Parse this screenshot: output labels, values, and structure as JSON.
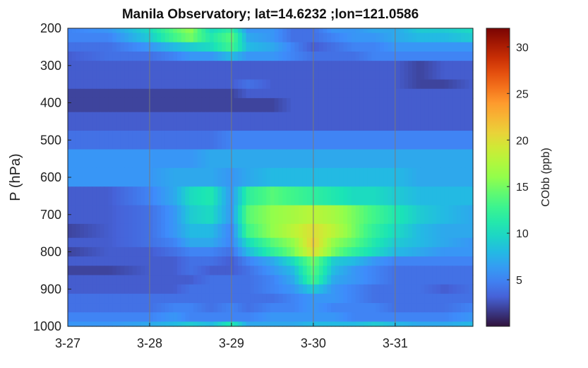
{
  "chart_data": {
    "type": "heatmap",
    "title": "Manila Observatory; lat=14.6232 ;lon=121.0586",
    "ylabel": "P (hPa)",
    "colorbar_label": "CObb (ppb)",
    "x_ticks": [
      "3-27",
      "3-28",
      "3-29",
      "3-30",
      "3-31"
    ],
    "x_tick_values": [
      0,
      1,
      2,
      3,
      4
    ],
    "x_range": [
      0,
      4.95
    ],
    "y_ticks": [
      "200",
      "300",
      "400",
      "500",
      "600",
      "700",
      "800",
      "900",
      "1000"
    ],
    "y_tick_values": [
      200,
      300,
      400,
      500,
      600,
      700,
      800,
      900,
      1000
    ],
    "y_range": [
      200,
      1000
    ],
    "y_reversed": true,
    "color_range": [
      0,
      32
    ],
    "colorbar_ticks": [
      "5",
      "10",
      "15",
      "20",
      "25",
      "30"
    ],
    "colorbar_tick_values": [
      5,
      10,
      15,
      20,
      25,
      30
    ],
    "colormap": "turbo",
    "vertical_gridlines_at": [
      1,
      2,
      3,
      4
    ],
    "pressure_levels": [
      200,
      225,
      250,
      275,
      300,
      325,
      350,
      375,
      400,
      450,
      500,
      550,
      600,
      650,
      700,
      750,
      775,
      800,
      825,
      850,
      875,
      900,
      925,
      950,
      975,
      1000
    ],
    "time_anchor_days": [
      0,
      0.5,
      1,
      1.3,
      1.5,
      1.75,
      2,
      2.2,
      2.5,
      2.75,
      3,
      3.25,
      3.5,
      3.75,
      4,
      4.3,
      4.6,
      4.95
    ],
    "values": [
      [
        5,
        6,
        10,
        14,
        16,
        10,
        12,
        6,
        6,
        4,
        4,
        6,
        6,
        7,
        7,
        9,
        9,
        10
      ],
      [
        5,
        5,
        9,
        13,
        15,
        11,
        14,
        7,
        6,
        4,
        4,
        5,
        6,
        6,
        7,
        8,
        8,
        9
      ],
      [
        4,
        4,
        6,
        8,
        9,
        10,
        13,
        8,
        7,
        5,
        3,
        4,
        5,
        5,
        6,
        6,
        6,
        6
      ],
      [
        3,
        4,
        4,
        5,
        6,
        6,
        8,
        6,
        6,
        5,
        4,
        4,
        4,
        5,
        5,
        5,
        5,
        5
      ],
      [
        3,
        3,
        3,
        3,
        3,
        3,
        3,
        3,
        3,
        3,
        3,
        3,
        3,
        3,
        3,
        2,
        3,
        3
      ],
      [
        3,
        3,
        3,
        3,
        3,
        3,
        3,
        3,
        3,
        3,
        3,
        3,
        3,
        3,
        3,
        2,
        3,
        3
      ],
      [
        3,
        3,
        3,
        3,
        3,
        3,
        3,
        4,
        3,
        3,
        3,
        3,
        3,
        3,
        3,
        2,
        2,
        3
      ],
      [
        2,
        2,
        2,
        2,
        2,
        2,
        2,
        3,
        3,
        3,
        3,
        3,
        3,
        3,
        3,
        3,
        3,
        3
      ],
      [
        2,
        2,
        2,
        2,
        2,
        2,
        2,
        2,
        2,
        3,
        3,
        3,
        3,
        3,
        3,
        3,
        3,
        3
      ],
      [
        3,
        3,
        3,
        3,
        3,
        3,
        3,
        3,
        3,
        3,
        3,
        3,
        3,
        3,
        3,
        3,
        3,
        3
      ],
      [
        4,
        4,
        4,
        4,
        4,
        4,
        5,
        5,
        5,
        5,
        5,
        5,
        5,
        5,
        5,
        5,
        5,
        5
      ],
      [
        6,
        6,
        6,
        6,
        6,
        7,
        7,
        7,
        7,
        7,
        7,
        7,
        7,
        7,
        7,
        7,
        7,
        7
      ],
      [
        6,
        6,
        6,
        7,
        7,
        7,
        6,
        7,
        8,
        8,
        8,
        8,
        8,
        8,
        8,
        7,
        7,
        7
      ],
      [
        3,
        3,
        5,
        7,
        10,
        11,
        6,
        12,
        14,
        13,
        12,
        11,
        10,
        10,
        9,
        8,
        8,
        8
      ],
      [
        3,
        3,
        4,
        6,
        9,
        10,
        6,
        14,
        16,
        17,
        18,
        17,
        15,
        13,
        11,
        9,
        8,
        7
      ],
      [
        2,
        3,
        4,
        6,
        8,
        8,
        5,
        13,
        16,
        18,
        20,
        18,
        15,
        12,
        10,
        8,
        7,
        7
      ],
      [
        3,
        3,
        4,
        5,
        7,
        7,
        5,
        10,
        14,
        16,
        21,
        16,
        14,
        11,
        9,
        8,
        7,
        6
      ],
      [
        2,
        3,
        3,
        4,
        5,
        5,
        4,
        8,
        12,
        15,
        20,
        15,
        12,
        10,
        8,
        7,
        6,
        6
      ],
      [
        3,
        3,
        3,
        3,
        4,
        4,
        3,
        5,
        7,
        10,
        15,
        9,
        8,
        6,
        5,
        5,
        5,
        5
      ],
      [
        2,
        2,
        3,
        3,
        4,
        3,
        3,
        4,
        6,
        8,
        14,
        8,
        6,
        5,
        4,
        4,
        4,
        4
      ],
      [
        3,
        3,
        3,
        3,
        3,
        4,
        4,
        4,
        5,
        7,
        13,
        7,
        6,
        5,
        4,
        4,
        4,
        4
      ],
      [
        3,
        3,
        3,
        3,
        4,
        4,
        4,
        4,
        5,
        6,
        9,
        6,
        5,
        4,
        4,
        4,
        3,
        4
      ],
      [
        4,
        4,
        4,
        4,
        4,
        4,
        4,
        4,
        4,
        5,
        6,
        6,
        5,
        4,
        4,
        4,
        4,
        4
      ],
      [
        4,
        4,
        4,
        5,
        5,
        4,
        5,
        4,
        5,
        5,
        6,
        5,
        5,
        5,
        4,
        4,
        4,
        5
      ],
      [
        5,
        5,
        5,
        6,
        5,
        5,
        5,
        5,
        6,
        6,
        6,
        6,
        5,
        5,
        5,
        5,
        5,
        6
      ],
      [
        6,
        6,
        7,
        8,
        9,
        8,
        11,
        7,
        7,
        7,
        8,
        8,
        8,
        9,
        8,
        7,
        7,
        8
      ]
    ]
  }
}
